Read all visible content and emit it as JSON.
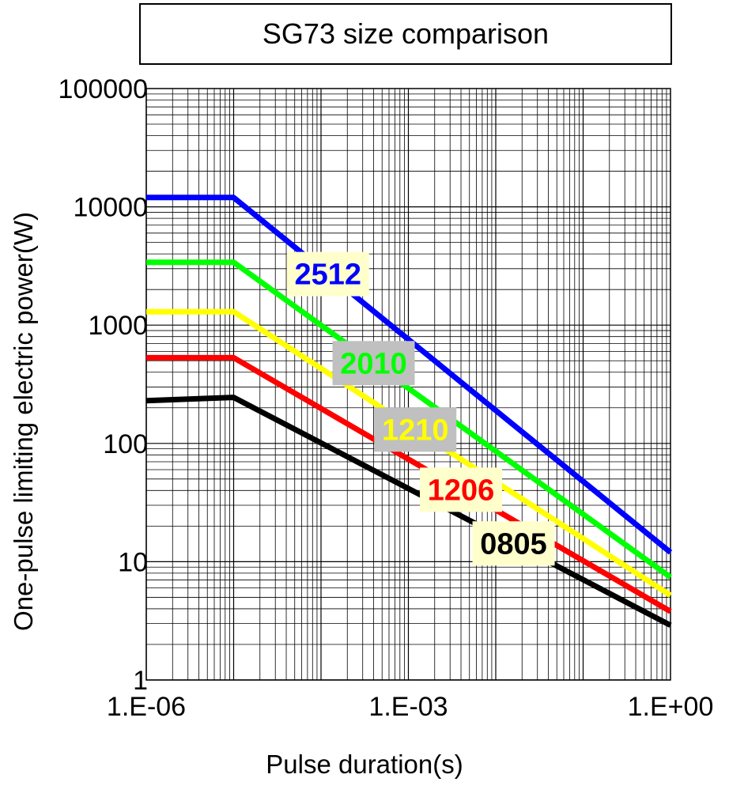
{
  "chart_data": {
    "type": "line",
    "title": "SG73 size comparison",
    "xlabel": "Pulse duration(s)",
    "ylabel": "One-pulse limiting electric power(W)",
    "x_scale": "log",
    "y_scale": "log",
    "xlim": [
      1e-06,
      1
    ],
    "ylim": [
      1,
      100000
    ],
    "grid": true,
    "x_tick_labels": [
      {
        "value": 1e-06,
        "label": "1.E-06"
      },
      {
        "value": 0.001,
        "label": "1.E-03"
      },
      {
        "value": 1,
        "label": "1.E+00"
      }
    ],
    "y_tick_labels": [
      {
        "value": 1,
        "label": "1"
      },
      {
        "value": 10,
        "label": "10"
      },
      {
        "value": 100,
        "label": "100"
      },
      {
        "value": 1000,
        "label": "1000"
      },
      {
        "value": 10000,
        "label": "10000"
      },
      {
        "value": 100000,
        "label": "100000"
      }
    ],
    "series": [
      {
        "name": "2512",
        "color": "#0000ff",
        "label_bg": "#ffffcc",
        "points": [
          [
            1e-06,
            12000
          ],
          [
            1e-05,
            12000
          ],
          [
            1,
            12
          ]
        ]
      },
      {
        "name": "2010",
        "color": "#00ff00",
        "label_bg": "#c0c0c0",
        "points": [
          [
            1e-06,
            3400
          ],
          [
            1e-05,
            3400
          ],
          [
            1,
            7.4
          ]
        ]
      },
      {
        "name": "1210",
        "color": "#ffff00",
        "label_bg": "#c0c0c0",
        "points": [
          [
            1e-06,
            1300
          ],
          [
            1e-05,
            1300
          ],
          [
            1,
            5.2
          ]
        ]
      },
      {
        "name": "1206",
        "color": "#ff0000",
        "label_bg": "#ffffcc",
        "points": [
          [
            1e-06,
            530
          ],
          [
            1e-05,
            530
          ],
          [
            1,
            3.8
          ]
        ]
      },
      {
        "name": "0805",
        "color": "#000000",
        "label_bg": "#ffffcc",
        "points": [
          [
            1e-06,
            230
          ],
          [
            1e-05,
            245
          ],
          [
            1,
            2.9
          ]
        ]
      }
    ]
  }
}
